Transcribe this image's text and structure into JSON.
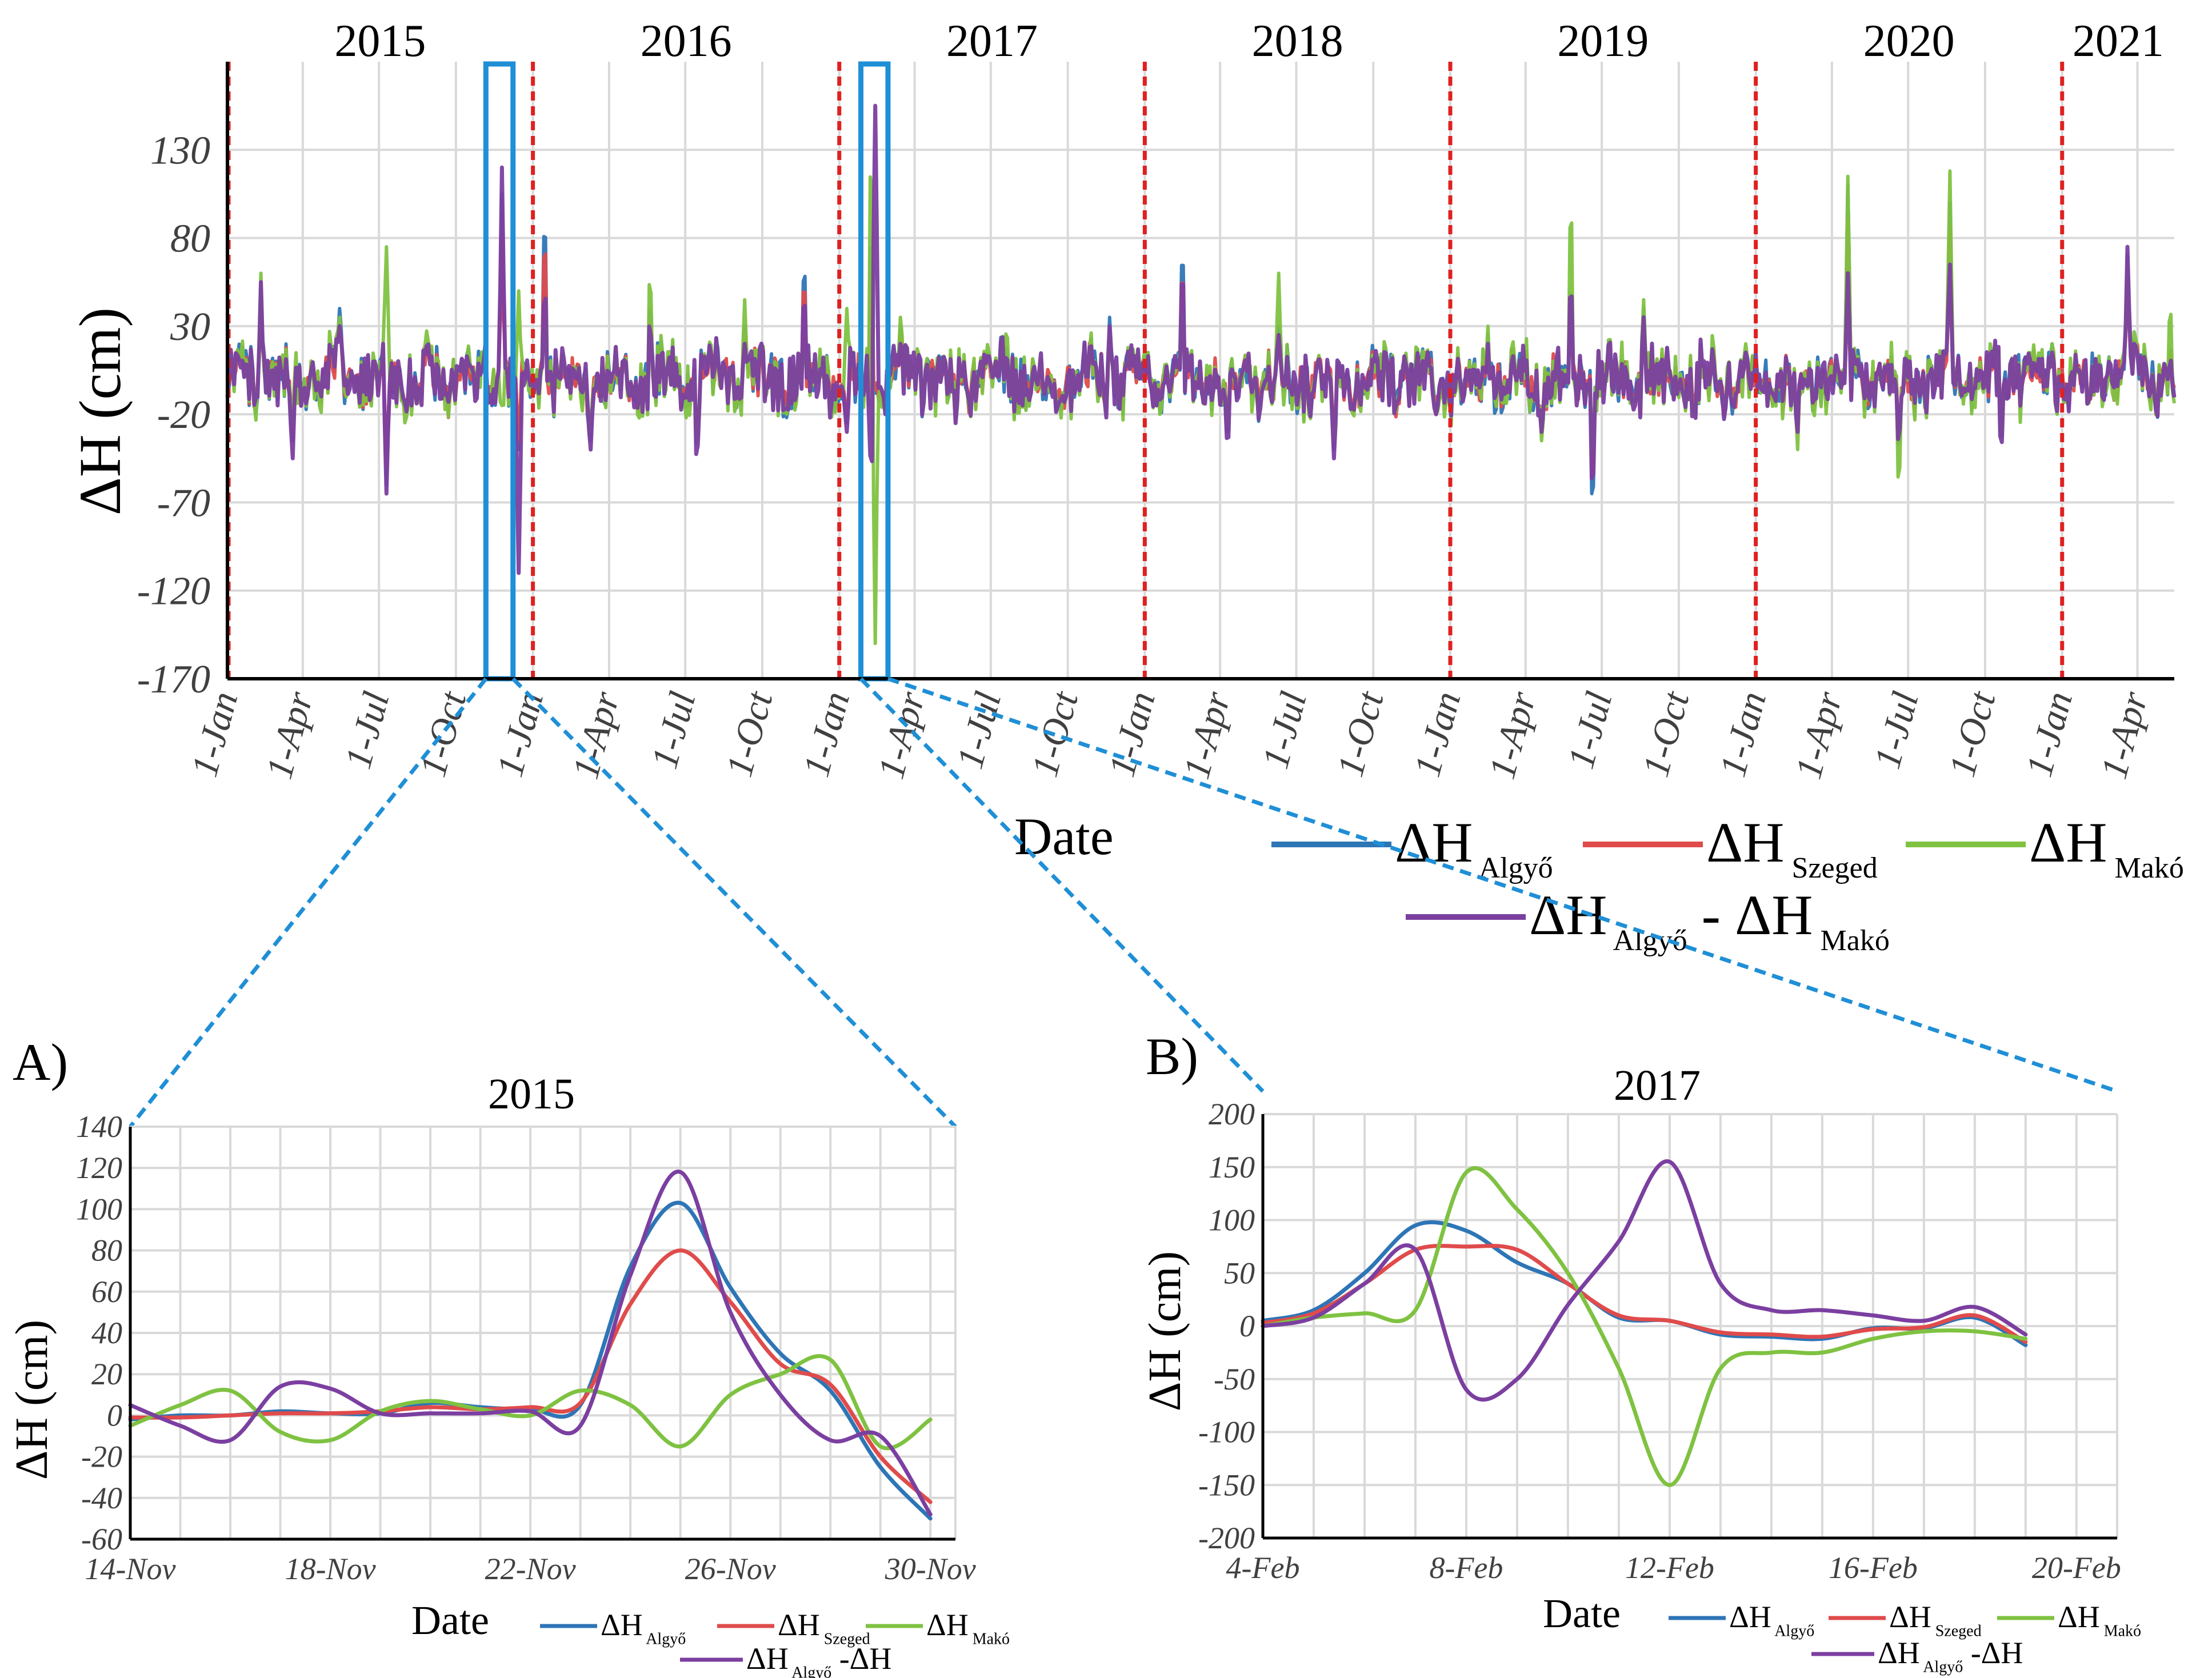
{
  "chart_data": [
    {
      "id": "main",
      "type": "line",
      "ylabel": "ΔH (cm)",
      "xlabel": "Date",
      "ylim": [
        -170,
        180
      ],
      "yticks": [
        130,
        80,
        30,
        -20,
        -70,
        -120,
        -170
      ],
      "xlim": [
        "2015-01-01",
        "2021-05-15"
      ],
      "xtick_labels": [
        "1-Jan",
        "1-Apr",
        "1-Jul",
        "1-Oct",
        "1-Jan",
        "1-Apr",
        "1-Jul",
        "1-Oct",
        "1-Jan",
        "1-Apr",
        "1-Jul",
        "1-Oct",
        "1-Jan",
        "1-Apr",
        "1-Jul",
        "1-Oct",
        "1-Jan",
        "1-Apr",
        "1-Jul",
        "1-Oct",
        "1-Jan",
        "1-Apr",
        "1-Jul",
        "1-Oct",
        "1-Jan",
        "1-Apr"
      ],
      "xtick_dates": [
        "2015-01-01",
        "2015-04-01",
        "2015-07-01",
        "2015-10-01",
        "2016-01-01",
        "2016-04-01",
        "2016-07-01",
        "2016-10-01",
        "2017-01-01",
        "2017-04-01",
        "2017-07-01",
        "2017-10-01",
        "2018-01-01",
        "2018-04-01",
        "2018-07-01",
        "2018-10-01",
        "2019-01-01",
        "2019-04-01",
        "2019-07-01",
        "2019-10-01",
        "2020-01-01",
        "2020-04-01",
        "2020-07-01",
        "2020-10-01",
        "2021-01-01",
        "2021-04-01"
      ],
      "years": [
        "2015",
        "2016",
        "2017",
        "2018",
        "2019",
        "2020",
        "2021"
      ],
      "year_boundaries": [
        "2016-01-01",
        "2017-01-01",
        "2018-01-01",
        "2019-01-01",
        "2020-01-01",
        "2021-01-01"
      ],
      "highlight_windows": [
        [
          "2015-11-14",
          "2015-11-30"
        ],
        [
          "2017-02-04",
          "2017-02-20"
        ]
      ],
      "grid": true,
      "legend_position": "bottom-right",
      "legend": [
        {
          "main": "ΔH",
          "sub": "Algyő",
          "color": "#2e75b6"
        },
        {
          "main": "ΔH",
          "sub": "Szeged",
          "color": "#e04b4b"
        },
        {
          "main": "ΔH",
          "sub": "Makó",
          "color": "#7fc241"
        },
        {
          "main": "ΔH",
          "sub": "Algyő",
          "main2": "- ΔH",
          "sub2": "Makó",
          "color": "#7b3fa0"
        }
      ],
      "series": [
        {
          "name": "ΔH Algyő",
          "color": "#2e75b6",
          "dates": [
            "2015-01-01",
            "2015-02-10",
            "2015-03-20",
            "2015-05-15",
            "2015-07-10",
            "2015-09-01",
            "2015-10-25",
            "2015-11-25",
            "2015-12-15",
            "2016-01-15",
            "2016-03-10",
            "2016-05-20",
            "2016-07-15",
            "2016-09-10",
            "2016-11-20",
            "2017-01-10",
            "2017-02-08",
            "2017-02-13",
            "2017-03-15",
            "2017-05-20",
            "2017-07-20",
            "2017-09-20",
            "2017-11-20",
            "2018-01-15",
            "2018-02-15",
            "2018-04-10",
            "2018-06-10",
            "2018-08-15",
            "2018-10-15",
            "2018-12-15",
            "2019-02-15",
            "2019-04-20",
            "2019-05-25",
            "2019-06-20",
            "2019-08-20",
            "2019-10-20",
            "2019-12-20",
            "2020-02-20",
            "2020-04-20",
            "2020-06-20",
            "2020-08-20",
            "2020-10-20",
            "2020-12-20",
            "2021-02-01",
            "2021-03-20",
            "2021-05-10"
          ],
          "values": [
            -5,
            55,
            -35,
            40,
            -60,
            15,
            -10,
            105,
            -40,
            110,
            -35,
            50,
            -45,
            30,
            75,
            -25,
            98,
            -8,
            30,
            -20,
            20,
            -15,
            35,
            -10,
            82,
            -45,
            30,
            -40,
            20,
            -15,
            25,
            -30,
            65,
            -80,
            40,
            -20,
            15,
            -30,
            110,
            -50,
            100,
            -40,
            20,
            -15,
            70,
            20
          ]
        },
        {
          "name": "ΔH Szeged",
          "color": "#e04b4b",
          "dates": [
            "2015-01-01",
            "2015-02-10",
            "2015-03-20",
            "2015-05-15",
            "2015-07-10",
            "2015-09-01",
            "2015-10-25",
            "2015-11-25",
            "2015-12-15",
            "2016-01-15",
            "2016-03-10",
            "2016-05-20",
            "2016-07-15",
            "2016-09-10",
            "2016-11-20",
            "2017-01-10",
            "2017-02-08",
            "2017-02-13",
            "2017-03-15",
            "2017-05-20",
            "2017-07-20",
            "2017-09-20",
            "2017-11-20",
            "2018-01-15",
            "2018-02-15",
            "2018-04-10",
            "2018-06-10",
            "2018-08-15",
            "2018-10-15",
            "2018-12-15",
            "2019-02-15",
            "2019-04-20",
            "2019-05-25",
            "2019-06-20",
            "2019-08-20",
            "2019-10-20",
            "2019-12-20",
            "2020-02-20",
            "2020-04-20",
            "2020-06-20",
            "2020-08-20",
            "2020-10-20",
            "2020-12-20",
            "2021-02-01",
            "2021-03-20",
            "2021-05-10"
          ],
          "values": [
            -3,
            45,
            -30,
            32,
            -50,
            12,
            -8,
            80,
            -35,
            95,
            -30,
            42,
            -38,
            25,
            65,
            -20,
            75,
            -6,
            25,
            -15,
            15,
            -12,
            28,
            -8,
            70,
            -38,
            25,
            -32,
            15,
            -12,
            20,
            -25,
            55,
            -68,
            32,
            -15,
            12,
            -25,
            90,
            -42,
            85,
            -32,
            15,
            -12,
            58,
            15
          ]
        },
        {
          "name": "ΔH Makó",
          "color": "#7fc241",
          "dates": [
            "2015-01-01",
            "2015-02-10",
            "2015-03-20",
            "2015-05-15",
            "2015-07-10",
            "2015-09-01",
            "2015-10-25",
            "2015-11-25",
            "2015-12-15",
            "2016-01-15",
            "2016-03-10",
            "2016-05-20",
            "2016-07-15",
            "2016-09-10",
            "2016-11-20",
            "2017-01-10",
            "2017-02-08",
            "2017-02-13",
            "2017-03-15",
            "2017-05-20",
            "2017-07-20",
            "2017-09-20",
            "2017-11-20",
            "2018-01-15",
            "2018-02-15",
            "2018-04-10",
            "2018-06-10",
            "2018-08-15",
            "2018-10-15",
            "2018-12-15",
            "2019-02-15",
            "2019-04-20",
            "2019-05-25",
            "2019-06-20",
            "2019-08-20",
            "2019-10-20",
            "2019-12-20",
            "2020-02-20",
            "2020-04-20",
            "2020-06-20",
            "2020-08-20",
            "2020-10-20",
            "2020-12-20",
            "2021-02-01",
            "2021-03-20",
            "2021-05-10"
          ],
          "values": [
            5,
            60,
            -25,
            35,
            75,
            20,
            -15,
            -15,
            50,
            40,
            -30,
            70,
            -40,
            45,
            20,
            40,
            150,
            -150,
            35,
            -25,
            30,
            -20,
            25,
            -15,
            45,
            -40,
            60,
            -35,
            25,
            -20,
            30,
            -35,
            118,
            -50,
            45,
            -25,
            20,
            -40,
            115,
            -75,
            118,
            -40,
            20,
            -20,
            65,
            45
          ]
        },
        {
          "name": "ΔH Algyő - ΔH Makó",
          "color": "#7b3fa0",
          "dates": [
            "2015-01-01",
            "2015-02-10",
            "2015-03-20",
            "2015-05-15",
            "2015-07-10",
            "2015-09-01",
            "2015-10-25",
            "2015-11-25",
            "2015-12-15",
            "2016-01-15",
            "2016-03-10",
            "2016-05-20",
            "2016-07-15",
            "2016-09-10",
            "2016-11-20",
            "2017-01-10",
            "2017-02-08",
            "2017-02-13",
            "2017-03-15",
            "2017-05-20",
            "2017-07-20",
            "2017-09-20",
            "2017-11-20",
            "2018-01-15",
            "2018-02-15",
            "2018-04-10",
            "2018-06-10",
            "2018-08-15",
            "2018-10-15",
            "2018-12-15",
            "2019-02-15",
            "2019-04-20",
            "2019-05-25",
            "2019-06-20",
            "2019-08-20",
            "2019-10-20",
            "2019-12-20",
            "2020-02-20",
            "2020-04-20",
            "2020-06-20",
            "2020-08-20",
            "2020-10-20",
            "2020-12-20",
            "2021-02-01",
            "2021-03-20",
            "2021-05-10"
          ],
          "values": [
            -10,
            55,
            -45,
            30,
            -65,
            10,
            -20,
            120,
            -110,
            60,
            -40,
            35,
            -50,
            20,
            55,
            -30,
            -60,
            155,
            20,
            -25,
            15,
            -20,
            30,
            -15,
            70,
            -50,
            25,
            -45,
            20,
            -20,
            20,
            -30,
            65,
            -70,
            35,
            -25,
            15,
            -30,
            60,
            -45,
            65,
            -45,
            15,
            -20,
            75,
            10
          ]
        }
      ]
    },
    {
      "id": "A",
      "type": "line",
      "panel_label": "A)",
      "title": "2015",
      "ylabel": "ΔH (cm)",
      "xlabel": "Date",
      "ylim": [
        -60,
        140
      ],
      "yticks": [
        140,
        120,
        100,
        80,
        60,
        40,
        20,
        0,
        -20,
        -40,
        -60
      ],
      "x_days": [
        14,
        15,
        16,
        17,
        18,
        19,
        20,
        21,
        22,
        23,
        24,
        25,
        26,
        27,
        28,
        29,
        30
      ],
      "xlim": [
        14,
        30.5
      ],
      "xtick_days": [
        14,
        18,
        22,
        26,
        30
      ],
      "xtick_labels": [
        "14-Nov",
        "18-Nov",
        "22-Nov",
        "26-Nov",
        "30-Nov"
      ],
      "grid": true,
      "legend_position": "bottom",
      "legend": [
        {
          "main": "ΔH",
          "sub": "Algyő",
          "color": "#2e75b6"
        },
        {
          "main": "ΔH",
          "sub": "Szeged",
          "color": "#e04b4b"
        },
        {
          "main": "ΔH",
          "sub": "Makó",
          "color": "#7fc241"
        },
        {
          "main": "ΔH",
          "sub": "Algyő",
          "main2": "-ΔH",
          "sub2": "",
          "color": "#7b3fa0"
        }
      ],
      "series": [
        {
          "name": "ΔH Algyő",
          "color": "#2e75b6",
          "values": [
            -2,
            0,
            0,
            2,
            1,
            1,
            6,
            4,
            3,
            5,
            72,
            103,
            62,
            30,
            12,
            -25,
            -50
          ]
        },
        {
          "name": "ΔH Szeged",
          "color": "#e04b4b",
          "values": [
            -1,
            -1,
            0,
            1,
            1,
            2,
            4,
            3,
            4,
            6,
            54,
            80,
            55,
            25,
            15,
            -20,
            -42
          ]
        },
        {
          "name": "ΔH Makó",
          "color": "#7fc241",
          "values": [
            -5,
            5,
            12,
            -8,
            -12,
            2,
            7,
            3,
            0,
            12,
            5,
            -15,
            10,
            20,
            27,
            -15,
            -2
          ]
        },
        {
          "name": "ΔH Algyő -ΔH",
          "color": "#7b3fa0",
          "values": [
            5,
            -5,
            -12,
            14,
            13,
            1,
            1,
            1,
            2,
            -5,
            68,
            118,
            50,
            10,
            -12,
            -10,
            -48
          ]
        }
      ]
    },
    {
      "id": "B",
      "type": "line",
      "panel_label": "B)",
      "title": "2017",
      "ylabel": "ΔH (cm)",
      "xlabel": "Date",
      "ylim": [
        -200,
        200
      ],
      "yticks": [
        200,
        150,
        100,
        50,
        0,
        -50,
        -100,
        -150,
        -200
      ],
      "x_days": [
        4,
        5,
        6,
        7,
        8,
        9,
        10,
        11,
        12,
        13,
        14,
        15,
        16,
        17,
        18,
        19,
        20
      ],
      "xlim": [
        4,
        20.8
      ],
      "xtick_days": [
        4,
        8,
        12,
        16,
        20
      ],
      "xtick_labels": [
        "4-Feb",
        "8-Feb",
        "12-Feb",
        "16-Feb",
        "20-Feb"
      ],
      "grid": true,
      "legend_position": "bottom",
      "legend": [
        {
          "main": "ΔH",
          "sub": "Algyő",
          "color": "#2e75b6"
        },
        {
          "main": "ΔH",
          "sub": "Szeged",
          "color": "#e04b4b"
        },
        {
          "main": "ΔH",
          "sub": "Makó",
          "color": "#7fc241"
        },
        {
          "main": "ΔH",
          "sub": "Algyő",
          "main2": "-ΔH",
          "sub2": "",
          "color": "#7b3fa0"
        }
      ],
      "series": [
        {
          "name": "ΔH Algyő",
          "color": "#2e75b6",
          "values": [
            5,
            15,
            50,
            95,
            90,
            60,
            40,
            8,
            5,
            -8,
            -10,
            -12,
            -2,
            -2,
            8,
            -18,
            null
          ]
        },
        {
          "name": "ΔH Szeged",
          "color": "#e04b4b",
          "values": [
            3,
            12,
            40,
            72,
            75,
            72,
            40,
            10,
            5,
            -6,
            -8,
            -10,
            -3,
            -1,
            10,
            -15,
            null
          ]
        },
        {
          "name": "ΔH Makó",
          "color": "#7fc241",
          "values": [
            0,
            8,
            12,
            15,
            145,
            110,
            50,
            -40,
            -150,
            -40,
            -25,
            -25,
            -12,
            -5,
            -5,
            -12,
            null
          ]
        },
        {
          "name": "ΔH Algyő -ΔH",
          "color": "#7b3fa0",
          "values": [
            0,
            8,
            40,
            72,
            -60,
            -50,
            20,
            80,
            155,
            40,
            15,
            15,
            10,
            5,
            18,
            -8,
            null
          ]
        }
      ]
    }
  ]
}
